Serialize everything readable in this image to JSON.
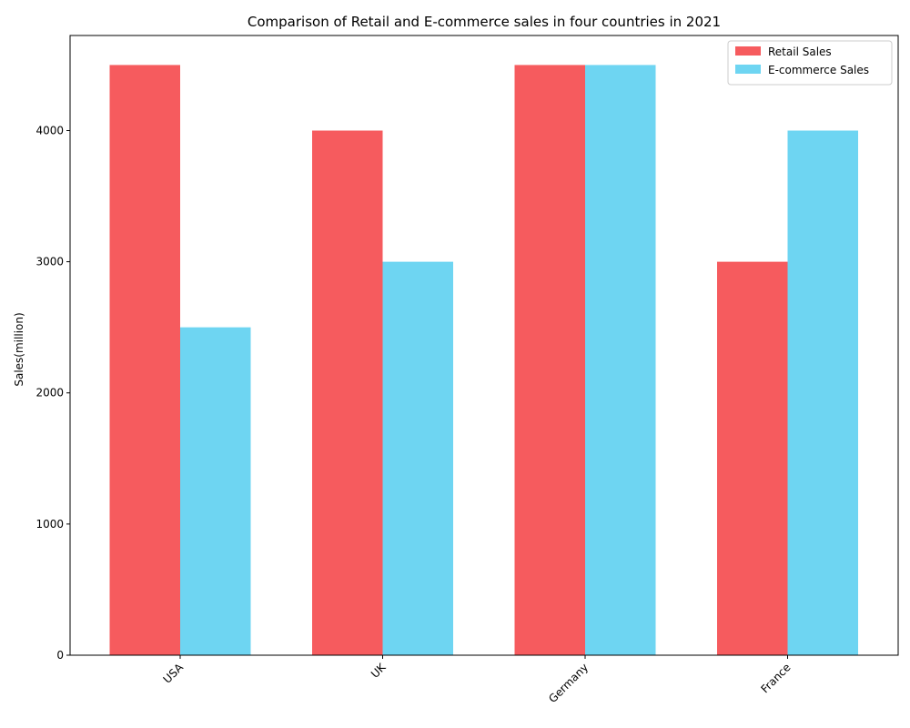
{
  "chart_data": {
    "type": "bar",
    "title": "Comparison of Retail and E-commerce sales in four countries in 2021",
    "xlabel": "",
    "ylabel": "Sales(million)",
    "categories": [
      "USA",
      "UK",
      "Germany",
      "France"
    ],
    "series": [
      {
        "name": "Retail Sales",
        "color": "#f65b5e",
        "values": [
          4500,
          4000,
          4500,
          3000
        ]
      },
      {
        "name": "E-commerce Sales",
        "color": "#6ed5f2",
        "values": [
          2500,
          3000,
          4500,
          4000
        ]
      }
    ],
    "ylim": [
      0,
      4725
    ],
    "yticks": [
      0,
      1000,
      2000,
      3000,
      4000
    ],
    "grid": false,
    "legend_position": "top-right"
  }
}
